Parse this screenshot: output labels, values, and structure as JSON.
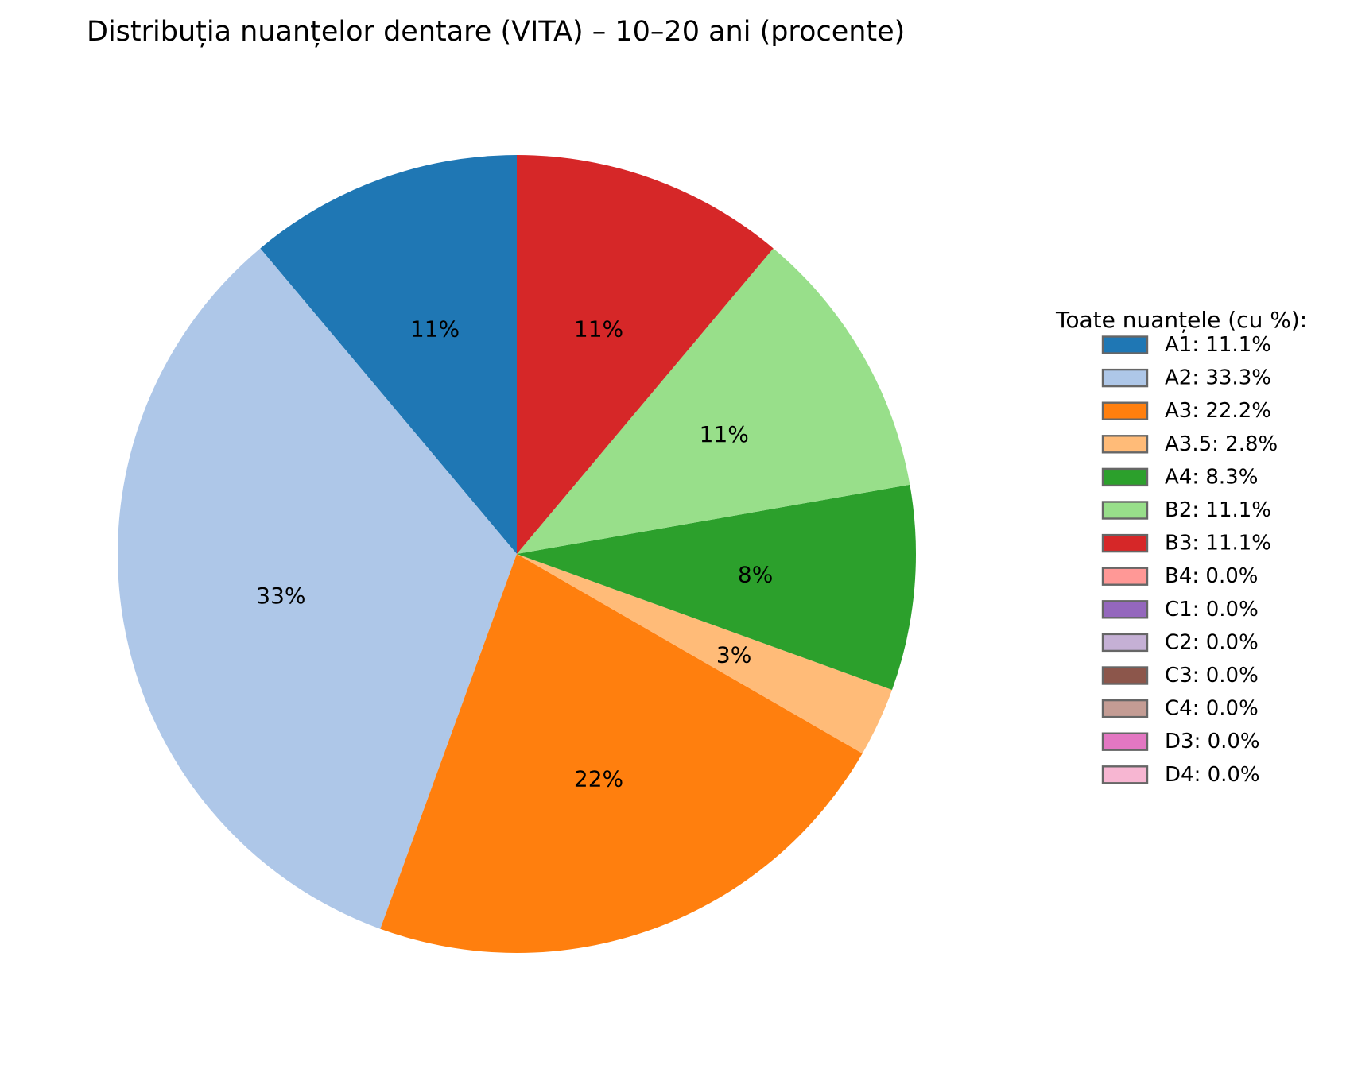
{
  "chart_data": {
    "type": "pie",
    "title": "Distribuția nuanțelor dentare (VITA) – 10–20 ani (procente)",
    "start_angle_deg": 90,
    "direction": "counterclockwise",
    "slices": [
      {
        "label": "A1",
        "value": 11.1,
        "color": "#1f77b4",
        "pct_label": "11%",
        "legend_label": "A1: 11.1%"
      },
      {
        "label": "A2",
        "value": 33.3,
        "color": "#aec7e8",
        "pct_label": "33%",
        "legend_label": "A2: 33.3%"
      },
      {
        "label": "A3",
        "value": 22.2,
        "color": "#ff7f0e",
        "pct_label": "22%",
        "legend_label": "A3: 22.2%"
      },
      {
        "label": "A3.5",
        "value": 2.8,
        "color": "#ffbb78",
        "pct_label": "3%",
        "legend_label": "A3.5: 2.8%"
      },
      {
        "label": "A4",
        "value": 8.3,
        "color": "#2ca02c",
        "pct_label": "8%",
        "legend_label": "A4: 8.3%"
      },
      {
        "label": "B2",
        "value": 11.1,
        "color": "#98df8a",
        "pct_label": "11%",
        "legend_label": "B2: 11.1%"
      },
      {
        "label": "B3",
        "value": 11.1,
        "color": "#d62728",
        "pct_label": "11%",
        "legend_label": "B3: 11.1%"
      },
      {
        "label": "B4",
        "value": 0.0,
        "color": "#ff9896",
        "pct_label": "",
        "legend_label": "B4: 0.0%"
      },
      {
        "label": "C1",
        "value": 0.0,
        "color": "#9467bd",
        "pct_label": "",
        "legend_label": "C1: 0.0%"
      },
      {
        "label": "C2",
        "value": 0.0,
        "color": "#c5b0d5",
        "pct_label": "",
        "legend_label": "C2: 0.0%"
      },
      {
        "label": "C3",
        "value": 0.0,
        "color": "#8c564b",
        "pct_label": "",
        "legend_label": "C3: 0.0%"
      },
      {
        "label": "C4",
        "value": 0.0,
        "color": "#c49c94",
        "pct_label": "",
        "legend_label": "C4: 0.0%"
      },
      {
        "label": "D3",
        "value": 0.0,
        "color": "#e377c2",
        "pct_label": "",
        "legend_label": "D3: 0.0%"
      },
      {
        "label": "D4",
        "value": 0.0,
        "color": "#f7b6d2",
        "pct_label": "",
        "legend_label": "D4: 0.0%"
      }
    ],
    "legend": {
      "title": "Toate nuanțele (cu %):",
      "placement": "right"
    }
  }
}
